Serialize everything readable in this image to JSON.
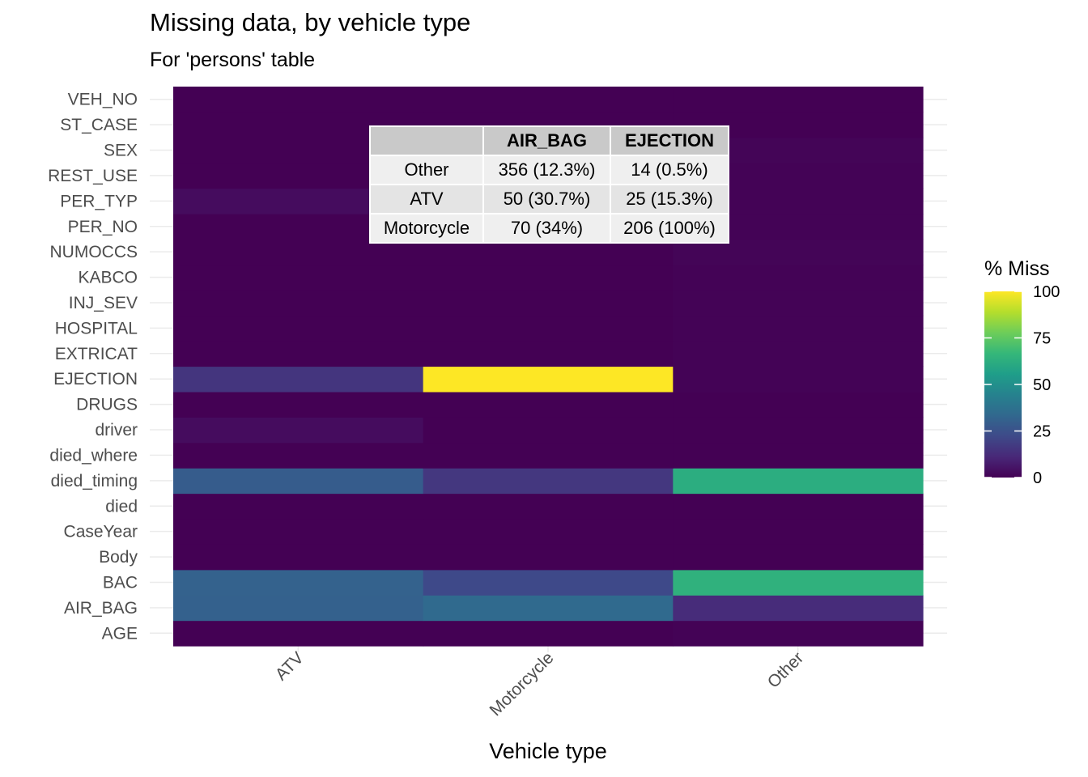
{
  "chart_data": {
    "type": "heatmap",
    "title": "Missing data, by vehicle type",
    "subtitle": "For 'persons' table",
    "xlabel": "Vehicle type",
    "ylabel": "",
    "x_categories": [
      "ATV",
      "Motorcycle",
      "Other"
    ],
    "y_categories": [
      "AGE",
      "AIR_BAG",
      "BAC",
      "Body",
      "CaseYear",
      "died",
      "died_timing",
      "died_where",
      "driver",
      "DRUGS",
      "EJECTION",
      "EXTRICAT",
      "HOSPITAL",
      "INJ_SEV",
      "KABCO",
      "NUMOCCS",
      "PER_NO",
      "PER_TYP",
      "REST_USE",
      "SEX",
      "ST_CASE",
      "VEH_NO"
    ],
    "values": {
      "VEH_NO": [
        0,
        0,
        0
      ],
      "ST_CASE": [
        0,
        0,
        0
      ],
      "SEX": [
        0,
        0,
        1
      ],
      "REST_USE": [
        0,
        0,
        0.5
      ],
      "PER_TYP": [
        3,
        0.5,
        0.5
      ],
      "PER_NO": [
        0,
        0,
        0.5
      ],
      "NUMOCCS": [
        0,
        0,
        1
      ],
      "KABCO": [
        0,
        0,
        0.5
      ],
      "INJ_SEV": [
        0,
        0,
        0.5
      ],
      "HOSPITAL": [
        0,
        0,
        0.5
      ],
      "EXTRICAT": [
        0,
        0,
        0.5
      ],
      "EJECTION": [
        15.3,
        100,
        0.5
      ],
      "DRUGS": [
        0,
        0,
        0
      ],
      "driver": [
        3,
        0,
        0
      ],
      "died_where": [
        0,
        0,
        0
      ],
      "died_timing": [
        29,
        16,
        62
      ],
      "died": [
        0,
        0,
        0
      ],
      "CaseYear": [
        0,
        0,
        0
      ],
      "Body": [
        0,
        0,
        0
      ],
      "BAC": [
        31,
        22,
        64
      ],
      "AIR_BAG": [
        30.7,
        34,
        12.3
      ],
      "AGE": [
        0,
        0,
        0.5
      ]
    },
    "legend": {
      "title": "% Miss",
      "ticks": [
        0,
        25,
        50,
        75,
        100
      ],
      "range": [
        0,
        100
      ],
      "placement": "right"
    },
    "grid": true,
    "colors": [
      "#440154",
      "#482878",
      "#3E4A89",
      "#31688E",
      "#26828E",
      "#1F9E89",
      "#35B779",
      "#6DCD59",
      "#B4DE2C",
      "#FDE725"
    ]
  },
  "inset_table": {
    "headers": [
      "",
      "AIR_BAG",
      "EJECTION"
    ],
    "rows": [
      [
        "Other",
        "356 (12.3%)",
        "14 (0.5%)"
      ],
      [
        "ATV",
        "50 (30.7%)",
        "25 (15.3%)"
      ],
      [
        "Motorcycle",
        "70 (34%)",
        "206 (100%)"
      ]
    ]
  }
}
